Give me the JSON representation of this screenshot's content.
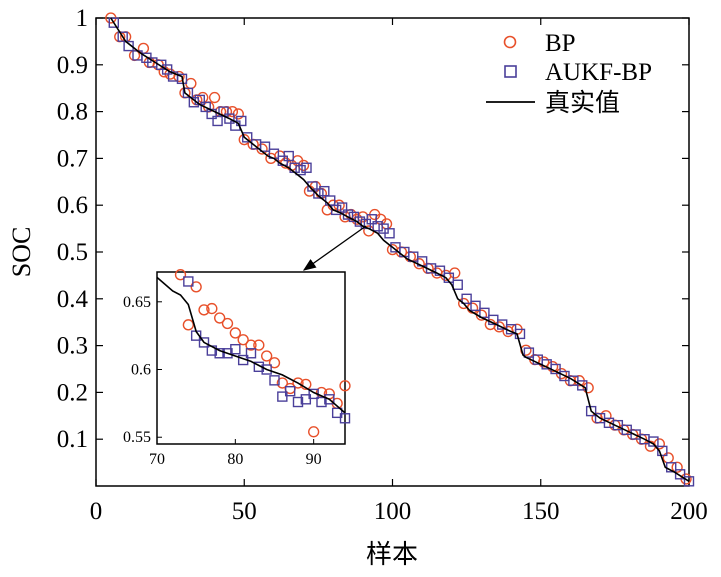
{
  "chart_data": {
    "type": "scatter",
    "xlabel": "样本",
    "ylabel": "SOC",
    "xlim": [
      0,
      200
    ],
    "ylim": [
      0,
      1
    ],
    "xticks": [
      0,
      50,
      100,
      150,
      200
    ],
    "xtick_labels": [
      "0",
      "50",
      "100",
      "150",
      "200"
    ],
    "yticks": [
      0.1,
      0.2,
      0.3,
      0.4,
      0.5,
      0.6,
      0.7,
      0.8,
      0.9,
      1
    ],
    "ytick_labels": [
      "0.1",
      "0.2",
      "0.3",
      "0.4",
      "0.5",
      "0.6",
      "0.7",
      "0.8",
      "0.9",
      "1"
    ],
    "legend": {
      "placement": "top-right",
      "entries": [
        "BP",
        "AUKF-BP",
        "真实值"
      ]
    },
    "series": [
      {
        "name": "真实值",
        "style": "line",
        "color": "#000000",
        "x": [
          5,
          10,
          15,
          20,
          25,
          27,
          29,
          30,
          32,
          35,
          40,
          45,
          48,
          50,
          52,
          55,
          58,
          60,
          62,
          65,
          68,
          70,
          72,
          75,
          78,
          80,
          82,
          85,
          88,
          90,
          92,
          95,
          97,
          99,
          100,
          102,
          105,
          110,
          115,
          118,
          120,
          122,
          124,
          126,
          130,
          135,
          140,
          142,
          144,
          145,
          150,
          155,
          160,
          165,
          167,
          168,
          170,
          175,
          180,
          185,
          188,
          190,
          192,
          195,
          200
        ],
        "y": [
          1.0,
          0.95,
          0.925,
          0.905,
          0.885,
          0.88,
          0.875,
          0.84,
          0.83,
          0.815,
          0.8,
          0.785,
          0.775,
          0.745,
          0.735,
          0.72,
          0.705,
          0.7,
          0.69,
          0.68,
          0.665,
          0.655,
          0.64,
          0.62,
          0.605,
          0.59,
          0.585,
          0.575,
          0.565,
          0.555,
          0.55,
          0.54,
          0.525,
          0.515,
          0.51,
          0.5,
          0.485,
          0.47,
          0.455,
          0.445,
          0.43,
          0.4,
          0.39,
          0.375,
          0.36,
          0.345,
          0.33,
          0.325,
          0.28,
          0.275,
          0.26,
          0.245,
          0.23,
          0.21,
          0.16,
          0.155,
          0.145,
          0.13,
          0.115,
          0.1,
          0.09,
          0.075,
          0.04,
          0.03,
          0.01
        ]
      },
      {
        "name": "BP",
        "style": "circle",
        "color": "#e8502a",
        "x": [
          5,
          8,
          10,
          13,
          16,
          18,
          21,
          23,
          25,
          28,
          30,
          32,
          34,
          36,
          38,
          40,
          42,
          44,
          46,
          48,
          50,
          53,
          56,
          59,
          62,
          64,
          66,
          68,
          70,
          72,
          74,
          76,
          78,
          80,
          82,
          84,
          86,
          88,
          90,
          92,
          94,
          96,
          98,
          100,
          103,
          106,
          109,
          112,
          115,
          118,
          121,
          124,
          127,
          130,
          133,
          136,
          139,
          142,
          145,
          148,
          151,
          154,
          157,
          160,
          163,
          166,
          169,
          172,
          175,
          178,
          181,
          184,
          187,
          190,
          193,
          196,
          199
        ],
        "y": [
          1.0,
          0.96,
          0.96,
          0.92,
          0.935,
          0.905,
          0.9,
          0.885,
          0.88,
          0.875,
          0.84,
          0.86,
          0.825,
          0.83,
          0.81,
          0.83,
          0.8,
          0.8,
          0.8,
          0.795,
          0.74,
          0.73,
          0.72,
          0.7,
          0.705,
          0.69,
          0.685,
          0.695,
          0.685,
          0.63,
          0.64,
          0.625,
          0.59,
          0.6,
          0.6,
          0.575,
          0.58,
          0.57,
          0.575,
          0.545,
          0.58,
          0.57,
          0.56,
          0.505,
          0.5,
          0.49,
          0.475,
          0.465,
          0.455,
          0.45,
          0.455,
          0.39,
          0.38,
          0.365,
          0.345,
          0.34,
          0.33,
          0.335,
          0.29,
          0.27,
          0.265,
          0.255,
          0.24,
          0.225,
          0.225,
          0.21,
          0.145,
          0.15,
          0.13,
          0.12,
          0.11,
          0.1,
          0.085,
          0.09,
          0.06,
          0.04,
          0.015
        ]
      },
      {
        "name": "AUKF-BP",
        "style": "square",
        "color": "#4a3f9a",
        "x": [
          6,
          9,
          11,
          14,
          17,
          19,
          22,
          24,
          26,
          29,
          31,
          33,
          35,
          37,
          39,
          41,
          43,
          45,
          47,
          49,
          51,
          54,
          57,
          60,
          63,
          65,
          67,
          69,
          71,
          73,
          75,
          77,
          79,
          81,
          83,
          85,
          87,
          89,
          91,
          93,
          95,
          97,
          99,
          101,
          104,
          107,
          110,
          113,
          116,
          119,
          122,
          125,
          128,
          131,
          134,
          137,
          140,
          143,
          146,
          149,
          152,
          155,
          158,
          161,
          164,
          167,
          170,
          173,
          176,
          179,
          182,
          185,
          188,
          191,
          194,
          197,
          200
        ],
        "y": [
          0.99,
          0.96,
          0.94,
          0.92,
          0.915,
          0.905,
          0.9,
          0.89,
          0.875,
          0.87,
          0.84,
          0.82,
          0.825,
          0.81,
          0.795,
          0.78,
          0.8,
          0.785,
          0.77,
          0.78,
          0.745,
          0.73,
          0.725,
          0.71,
          0.695,
          0.705,
          0.68,
          0.675,
          0.68,
          0.64,
          0.625,
          0.63,
          0.61,
          0.59,
          0.595,
          0.58,
          0.575,
          0.565,
          0.56,
          0.57,
          0.555,
          0.55,
          0.54,
          0.51,
          0.5,
          0.49,
          0.48,
          0.465,
          0.46,
          0.445,
          0.43,
          0.4,
          0.385,
          0.37,
          0.355,
          0.345,
          0.335,
          0.325,
          0.285,
          0.27,
          0.26,
          0.25,
          0.235,
          0.225,
          0.215,
          0.16,
          0.145,
          0.135,
          0.13,
          0.12,
          0.11,
          0.1,
          0.095,
          0.075,
          0.04,
          0.025,
          0.01
        ]
      }
    ],
    "inset": {
      "xlim": [
        70,
        94
      ],
      "ylim": [
        0.545,
        0.672
      ],
      "xticks": [
        70,
        80,
        90
      ],
      "xtick_labels": [
        "70",
        "80",
        "90"
      ],
      "yticks": [
        0.55,
        0.6,
        0.65
      ],
      "ytick_labels": [
        "0.55",
        "0.6",
        "0.65"
      ],
      "series": [
        {
          "name": "真实值",
          "x": [
            70,
            72,
            73,
            74,
            75,
            76,
            78,
            80,
            82,
            84,
            86,
            88,
            90,
            92,
            94
          ],
          "y": [
            0.668,
            0.658,
            0.655,
            0.648,
            0.628,
            0.62,
            0.614,
            0.61,
            0.606,
            0.6,
            0.596,
            0.59,
            0.583,
            0.578,
            0.568
          ]
        },
        {
          "name": "BP",
          "x": [
            73,
            74,
            75,
            76,
            77,
            78,
            79,
            80,
            81,
            82,
            83,
            84,
            85,
            86,
            87,
            88,
            89,
            90,
            91,
            92,
            93,
            94
          ],
          "y": [
            0.67,
            0.633,
            0.661,
            0.644,
            0.645,
            0.638,
            0.634,
            0.627,
            0.622,
            0.618,
            0.618,
            0.61,
            0.605,
            0.59,
            0.586,
            0.59,
            0.589,
            0.554,
            0.583,
            0.582,
            0.575,
            0.588
          ]
        },
        {
          "name": "AUKF-BP",
          "x": [
            74,
            75,
            76,
            77,
            78,
            79,
            80,
            81,
            82,
            83,
            84,
            85,
            86,
            87,
            88,
            89,
            90,
            91,
            92,
            93,
            94
          ],
          "y": [
            0.665,
            0.625,
            0.62,
            0.614,
            0.612,
            0.612,
            0.615,
            0.607,
            0.612,
            0.602,
            0.6,
            0.592,
            0.58,
            0.584,
            0.576,
            0.578,
            0.582,
            0.576,
            0.578,
            0.568,
            0.564
          ]
        }
      ]
    }
  }
}
